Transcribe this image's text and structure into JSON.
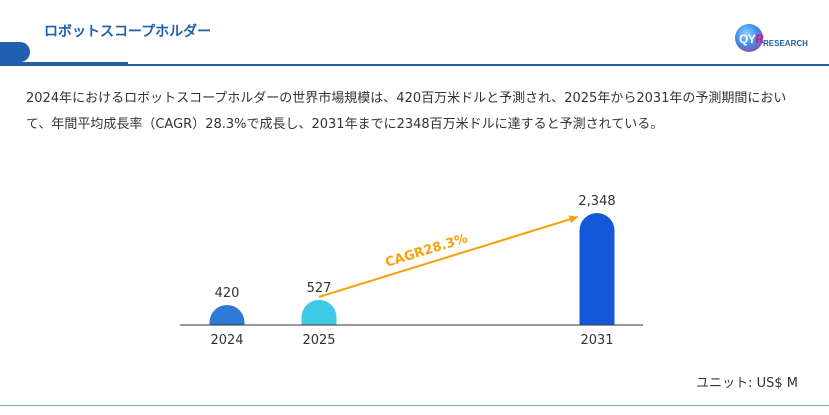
{
  "header": {
    "title": "ロボットスコープホルダー",
    "logo_main": "QY",
    "logo_accent": "R",
    "logo_sub": "RESEARCH"
  },
  "description": "2024年におけるロボットスコープホルダーの世界市場規模は、420百万米ドルと予測され、2025年から2031年の予測期間において、年間平均成長率（CAGR）28.3%で成長し、2031年までに2348百万米ドルに達すると予測されている。",
  "unit_label": "ユニット: US$ M",
  "chart_data": {
    "type": "bar",
    "categories": [
      "2024",
      "2025",
      "2031"
    ],
    "values": [
      420,
      527,
      2348
    ],
    "value_labels": [
      "420",
      "527",
      "2,348"
    ],
    "bar_colors": [
      "#2e7ad6",
      "#3ec9e6",
      "#1557d9"
    ],
    "annotation": "CAGR28.3%",
    "annotation_color": "#f5a10a",
    "axis_color": "#333333"
  }
}
